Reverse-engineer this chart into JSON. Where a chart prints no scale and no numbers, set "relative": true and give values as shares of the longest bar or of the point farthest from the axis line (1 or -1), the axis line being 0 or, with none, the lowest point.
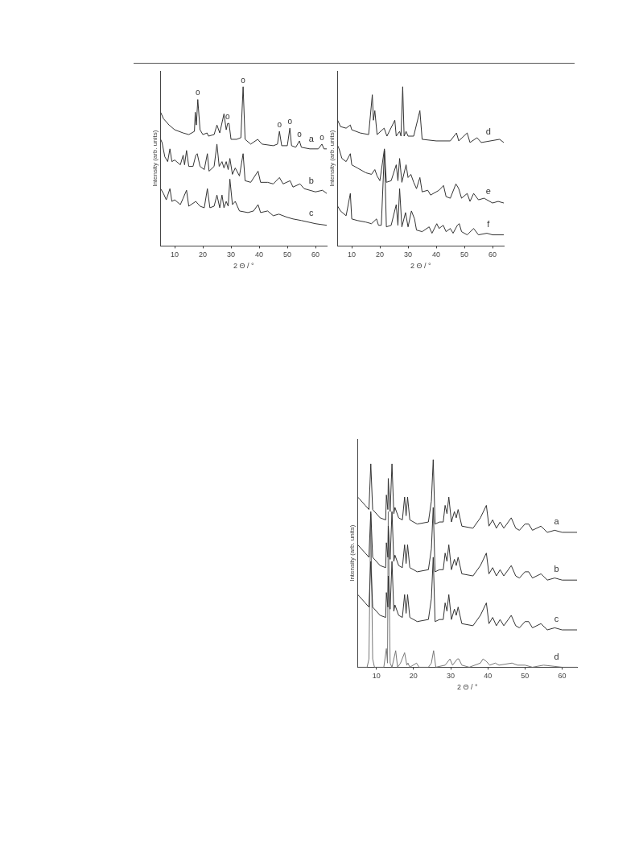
{
  "chart_data": [
    {
      "type": "line",
      "relative": true,
      "xlabel": "2 Θ / °",
      "ylabel": "Intensity (arb. units)",
      "xlim": [
        5,
        64
      ],
      "xticks": [
        10,
        20,
        30,
        40,
        50,
        60
      ],
      "tick_labels": "x",
      "grid": false,
      "legend": false,
      "marker": "none",
      "line_style": "solid",
      "annotations": [
        {
          "text": "o",
          "x": 18.2,
          "y": 0.92
        },
        {
          "text": "o",
          "x": 28.8,
          "y": 0.77
        },
        {
          "text": "o",
          "x": 34.3,
          "y": 1
        },
        {
          "text": "o",
          "x": 47.2,
          "y": 0.72
        },
        {
          "text": "o",
          "x": 50.9,
          "y": 0.74
        },
        {
          "text": "o",
          "x": 54.3,
          "y": 0.66
        },
        {
          "text": "o",
          "x": 62.3,
          "y": 0.64
        }
      ],
      "series": [
        {
          "name": "a",
          "color": "#333333",
          "x": [
            5,
            6,
            8,
            10,
            13,
            15,
            17,
            17.3,
            17.7,
            18.2,
            19,
            20,
            21.5,
            22,
            24,
            25,
            26,
            27.5,
            28.3,
            28.8,
            29.3,
            30,
            32,
            33.5,
            34.3,
            35,
            37,
            39.5,
            41,
            45,
            46.5,
            47.2,
            48,
            50,
            50.9,
            51.5,
            53,
            54.3,
            55,
            58,
            61,
            62.3,
            63,
            64
          ],
          "values": [
            0.84,
            0.8,
            0.76,
            0.73,
            0.71,
            0.7,
            0.72,
            0.84,
            0.76,
            0.92,
            0.73,
            0.7,
            0.71,
            0.69,
            0.7,
            0.76,
            0.71,
            0.83,
            0.73,
            0.77,
            0.77,
            0.67,
            0.67,
            0.68,
            1,
            0.67,
            0.64,
            0.67,
            0.64,
            0.63,
            0.64,
            0.72,
            0.63,
            0.63,
            0.74,
            0.63,
            0.62,
            0.66,
            0.62,
            0.61,
            0.61,
            0.64,
            0.61,
            0.61
          ]
        },
        {
          "name": "b",
          "color": "#333333",
          "x": [
            5,
            5.5,
            6.5,
            7.5,
            8.3,
            9,
            10,
            12,
            13,
            13.5,
            14.2,
            15,
            16.5,
            17.5,
            18,
            19,
            20.5,
            21.6,
            22.2,
            24,
            25,
            25.8,
            26.8,
            27.5,
            28.3,
            29,
            29.6,
            30.5,
            31.5,
            33,
            34.3,
            35,
            37,
            39.6,
            40.5,
            43,
            45,
            47.2,
            48.5,
            51,
            52,
            54.5,
            56,
            60,
            62.5,
            64
          ],
          "values": [
            0.67,
            0.65,
            0.56,
            0.53,
            0.61,
            0.53,
            0.54,
            0.51,
            0.57,
            0.51,
            0.6,
            0.5,
            0.5,
            0.57,
            0.58,
            0.5,
            0.48,
            0.58,
            0.47,
            0.5,
            0.64,
            0.5,
            0.53,
            0.49,
            0.53,
            0.48,
            0.55,
            0.45,
            0.49,
            0.44,
            0.58,
            0.41,
            0.4,
            0.47,
            0.4,
            0.4,
            0.39,
            0.43,
            0.39,
            0.41,
            0.37,
            0.39,
            0.36,
            0.34,
            0.35,
            0.33
          ]
        },
        {
          "name": "c",
          "color": "#333333",
          "x": [
            5,
            6,
            7,
            8.3,
            9,
            10,
            12,
            13,
            14.2,
            15,
            17.5,
            19,
            20.5,
            21.6,
            22.5,
            24,
            25,
            26,
            26.8,
            27.5,
            28.3,
            29,
            29.6,
            30.5,
            31.5,
            33,
            36,
            38,
            39.6,
            40.5,
            43,
            45,
            47,
            50,
            52,
            55,
            60,
            64
          ],
          "values": [
            0.36,
            0.33,
            0.29,
            0.36,
            0.28,
            0.29,
            0.26,
            0.3,
            0.35,
            0.25,
            0.28,
            0.25,
            0.24,
            0.36,
            0.24,
            0.25,
            0.32,
            0.24,
            0.32,
            0.24,
            0.28,
            0.25,
            0.42,
            0.26,
            0.28,
            0.22,
            0.21,
            0.22,
            0.26,
            0.21,
            0.22,
            0.19,
            0.2,
            0.18,
            0.17,
            0.16,
            0.14,
            0.13
          ]
        }
      ]
    },
    {
      "type": "line",
      "relative": true,
      "xlabel": "2 Θ / °",
      "ylabel": "Intensity (arb. units)",
      "xlim": [
        5,
        64
      ],
      "xticks": [
        10,
        20,
        30,
        40,
        50,
        60
      ],
      "tick_labels": "x",
      "grid": false,
      "legend": false,
      "marker": "none",
      "line_style": "solid",
      "series": [
        {
          "name": "d",
          "color": "#333333",
          "x": [
            5,
            6,
            8,
            9.5,
            10,
            13,
            16,
            17.3,
            17.7,
            18.2,
            19,
            21.5,
            22.5,
            25.3,
            25.8,
            27,
            27.5,
            28.1,
            28.6,
            29.3,
            30,
            32,
            34.2,
            35,
            40,
            45,
            47.2,
            48,
            51,
            52,
            54.5,
            56,
            62.5,
            64
          ],
          "values": [
            0.79,
            0.75,
            0.74,
            0.76,
            0.73,
            0.71,
            0.7,
            0.95,
            0.79,
            0.85,
            0.7,
            0.74,
            0.69,
            0.79,
            0.69,
            0.72,
            0.69,
            1,
            0.69,
            0.72,
            0.69,
            0.69,
            0.85,
            0.67,
            0.66,
            0.66,
            0.71,
            0.66,
            0.71,
            0.65,
            0.68,
            0.65,
            0.67,
            0.65
          ]
        },
        {
          "name": "e",
          "color": "#333333",
          "x": [
            5,
            5.5,
            6.5,
            8,
            9.5,
            10,
            12,
            15,
            17,
            18.2,
            19,
            20,
            21.6,
            22.3,
            24,
            25.8,
            26.4,
            27,
            27.8,
            29.3,
            30,
            31,
            32,
            33,
            34.2,
            35,
            37,
            38,
            40,
            41,
            42.6,
            43.5,
            45,
            47,
            48,
            49,
            51,
            52,
            53.3,
            55,
            57,
            60,
            62,
            64
          ],
          "values": [
            0.63,
            0.61,
            0.55,
            0.53,
            0.58,
            0.51,
            0.49,
            0.46,
            0.45,
            0.48,
            0.44,
            0.41,
            0.61,
            0.4,
            0.41,
            0.51,
            0.41,
            0.55,
            0.4,
            0.51,
            0.43,
            0.45,
            0.4,
            0.36,
            0.43,
            0.34,
            0.35,
            0.32,
            0.34,
            0.35,
            0.38,
            0.31,
            0.3,
            0.39,
            0.36,
            0.3,
            0.33,
            0.28,
            0.33,
            0.29,
            0.3,
            0.27,
            0.28,
            0.27
          ]
        },
        {
          "name": "f",
          "color": "#333333",
          "x": [
            5,
            6,
            8,
            9.5,
            10,
            12,
            15,
            17,
            18.8,
            19.5,
            20.5,
            21.6,
            22.3,
            24,
            25.8,
            26.4,
            27,
            27.8,
            29.1,
            30,
            31.2,
            32.3,
            33,
            35,
            37.5,
            38.5,
            40.2,
            41,
            42.5,
            43.5,
            45,
            46,
            47.5,
            48.2,
            49,
            51,
            53.3,
            55,
            58,
            60,
            64
          ],
          "values": [
            0.25,
            0.22,
            0.19,
            0.33,
            0.17,
            0.16,
            0.15,
            0.14,
            0.17,
            0.13,
            0.13,
            0.6,
            0.12,
            0.13,
            0.26,
            0.13,
            0.36,
            0.12,
            0.21,
            0.12,
            0.22,
            0.17,
            0.1,
            0.09,
            0.12,
            0.08,
            0.14,
            0.11,
            0.13,
            0.09,
            0.11,
            0.08,
            0.13,
            0.14,
            0.09,
            0.07,
            0.11,
            0.07,
            0.08,
            0.07,
            0.07
          ]
        }
      ]
    },
    {
      "type": "line",
      "relative": true,
      "xlabel": "2 Θ / °",
      "ylabel": "Intensity (arb. units)",
      "xlim": [
        5,
        64
      ],
      "xticks": [
        10,
        20,
        30,
        40,
        50,
        60
      ],
      "tick_labels": "x",
      "grid": false,
      "legend": false,
      "marker": "none",
      "line_style": "solid",
      "series": [
        {
          "name": "a",
          "color": "#333333",
          "x": [
            5,
            5.5,
            7,
            8,
            8.5,
            9,
            11,
            12.5,
            12.7,
            13.1,
            13.2,
            13.7,
            14.2,
            14.7,
            15,
            16,
            17,
            17.6,
            18,
            18.4,
            19,
            21,
            24,
            24.8,
            25.3,
            25.8,
            27,
            28,
            28.5,
            29,
            29.5,
            30.2,
            31,
            31.5,
            32,
            33,
            36,
            38,
            39.6,
            40.3,
            41.3,
            42.3,
            43.3,
            44.3,
            46.3,
            47.5,
            48.5,
            50,
            51,
            52,
            54.3,
            56,
            58,
            60,
            64
          ],
          "values": [
            0.82,
            0.81,
            0.78,
            0.76,
            0.98,
            0.76,
            0.72,
            0.71,
            0.83,
            0.76,
            0.91,
            0.75,
            0.98,
            0.74,
            0.77,
            0.72,
            0.71,
            0.82,
            0.73,
            0.82,
            0.71,
            0.69,
            0.7,
            0.8,
            1,
            0.69,
            0.7,
            0.7,
            0.78,
            0.74,
            0.82,
            0.7,
            0.75,
            0.72,
            0.76,
            0.68,
            0.67,
            0.72,
            0.78,
            0.68,
            0.71,
            0.67,
            0.7,
            0.67,
            0.72,
            0.67,
            0.66,
            0.69,
            0.69,
            0.66,
            0.68,
            0.65,
            0.66,
            0.65,
            0.65
          ]
        },
        {
          "name": "b",
          "color": "#333333",
          "x": [
            5,
            5.5,
            7,
            8,
            8.5,
            9,
            11,
            12.5,
            12.7,
            13.1,
            13.2,
            13.7,
            14.2,
            14.7,
            15,
            16,
            17,
            17.6,
            18,
            18.4,
            19,
            21,
            24,
            24.8,
            25.3,
            25.8,
            27,
            28,
            28.5,
            29,
            29.5,
            30.2,
            31,
            31.5,
            32,
            33,
            36,
            38,
            39.6,
            40.3,
            41.3,
            42.3,
            43.3,
            44.3,
            46.3,
            47.5,
            48.5,
            50,
            51,
            52,
            54.3,
            56,
            58,
            60,
            64
          ],
          "values": [
            0.59,
            0.58,
            0.55,
            0.53,
            0.75,
            0.53,
            0.49,
            0.48,
            0.6,
            0.53,
            0.68,
            0.52,
            0.75,
            0.51,
            0.54,
            0.49,
            0.48,
            0.59,
            0.5,
            0.59,
            0.48,
            0.46,
            0.47,
            0.57,
            0.77,
            0.46,
            0.47,
            0.47,
            0.55,
            0.51,
            0.59,
            0.47,
            0.52,
            0.49,
            0.53,
            0.45,
            0.44,
            0.49,
            0.55,
            0.45,
            0.48,
            0.44,
            0.47,
            0.44,
            0.49,
            0.44,
            0.43,
            0.46,
            0.46,
            0.43,
            0.45,
            0.42,
            0.43,
            0.42,
            0.42
          ]
        },
        {
          "name": "c",
          "color": "#333333",
          "x": [
            5,
            5.5,
            7,
            8,
            8.5,
            9,
            11,
            12.5,
            12.7,
            13.1,
            13.2,
            13.7,
            14.2,
            14.7,
            15,
            16,
            17,
            17.6,
            18,
            18.4,
            19,
            21,
            24,
            24.8,
            25.3,
            25.8,
            27,
            28,
            28.5,
            29,
            29.5,
            30.2,
            31,
            31.5,
            32,
            33,
            36,
            38,
            39.6,
            40.3,
            41.3,
            42.3,
            43.3,
            44.3,
            46.3,
            47.5,
            48.5,
            50,
            51,
            52,
            54.3,
            56,
            58,
            60,
            64
          ],
          "values": [
            0.35,
            0.34,
            0.31,
            0.29,
            0.51,
            0.29,
            0.25,
            0.24,
            0.36,
            0.29,
            0.44,
            0.28,
            0.51,
            0.27,
            0.3,
            0.25,
            0.24,
            0.35,
            0.26,
            0.35,
            0.24,
            0.22,
            0.23,
            0.33,
            0.53,
            0.22,
            0.23,
            0.23,
            0.31,
            0.27,
            0.35,
            0.23,
            0.28,
            0.25,
            0.29,
            0.21,
            0.2,
            0.25,
            0.31,
            0.21,
            0.24,
            0.2,
            0.23,
            0.2,
            0.25,
            0.2,
            0.19,
            0.22,
            0.22,
            0.19,
            0.21,
            0.18,
            0.19,
            0.18,
            0.18
          ]
        },
        {
          "name": "d",
          "color": "#777777",
          "x": [
            5,
            7.5,
            8,
            8.5,
            9,
            9.5,
            12,
            12.7,
            13,
            13.2,
            13.7,
            14.2,
            15.2,
            15.7,
            16.5,
            17.6,
            18.2,
            18.5,
            19,
            20.8,
            21.5,
            24,
            24.8,
            25.4,
            26,
            28.5,
            29.8,
            30.5,
            31.8,
            32.2,
            33,
            35,
            38,
            38.7,
            39.5,
            40.5,
            42,
            43,
            46.5,
            48,
            50,
            52,
            55,
            60,
            64
          ],
          "values": [
            0,
            0,
            0.04,
            0.74,
            0.04,
            0,
            0,
            0.09,
            0.02,
            0.75,
            0.02,
            0,
            0.08,
            0,
            0.02,
            0.07,
            0.01,
            0.02,
            0,
            0.02,
            0,
            0,
            0.02,
            0.08,
            0,
            0.01,
            0.04,
            0.01,
            0.04,
            0.04,
            0.01,
            0,
            0.02,
            0.04,
            0.03,
            0.01,
            0.02,
            0.01,
            0.02,
            0.01,
            0.01,
            0,
            0.01,
            0,
            0
          ]
        }
      ]
    }
  ]
}
